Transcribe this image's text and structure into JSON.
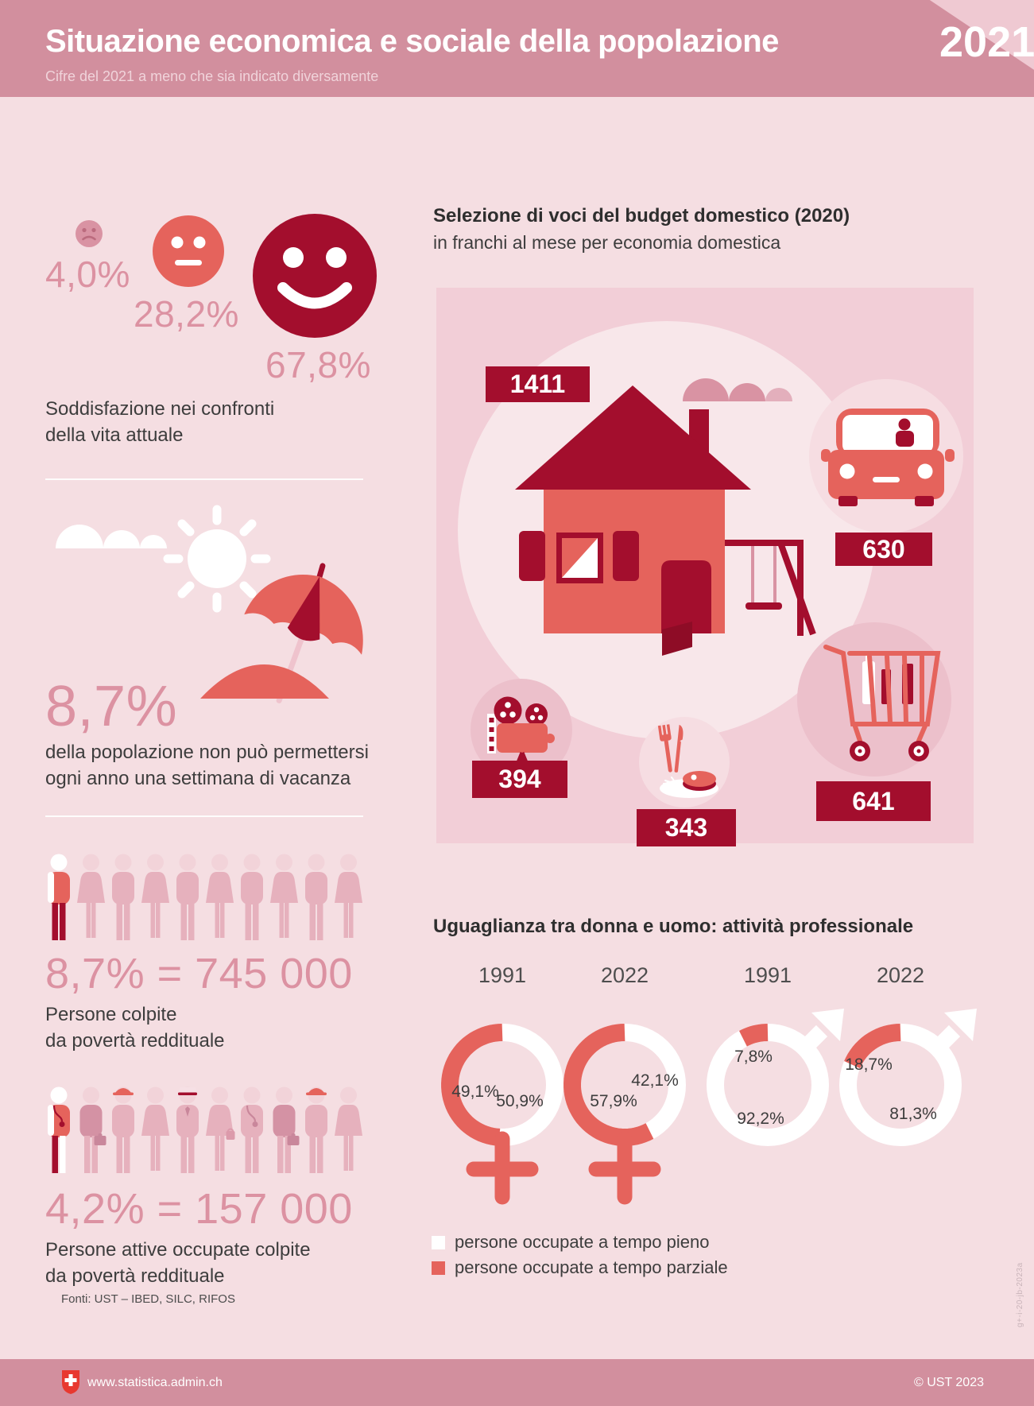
{
  "header": {
    "title": "Situazione economica e sociale della popolazione",
    "subtitle": "Cifre del 2021 a meno che sia indicato diversamente",
    "year": "2021"
  },
  "colors": {
    "dark_red": "#a30e2d",
    "salmon": "#e5635c",
    "band_pink": "#d28f9e",
    "page_pink": "#f5dee2",
    "panel_pink": "#f2ced7",
    "number_pink": "#dc92a2",
    "medium_pink": "#d993a3",
    "swiss_red": "#e8382f",
    "white": "#ffffff"
  },
  "satisfaction": {
    "items": [
      {
        "mood": "sad",
        "value": "4,0%"
      },
      {
        "mood": "neutral",
        "value": "28,2%"
      },
      {
        "mood": "happy",
        "value": "67,8%"
      }
    ],
    "caption_line1": "Soddisfazione nei confronti",
    "caption_line2": "della vita attuale"
  },
  "vacation": {
    "value": "8,7%",
    "caption_line1": "della popolazione non può permettersi",
    "caption_line2": "ogni anno una settimana di vacanza"
  },
  "income_poverty": {
    "value": "8,7% = 745 000",
    "caption_line1": "Persone colpite",
    "caption_line2": "da povertà reddituale"
  },
  "working_poor": {
    "value": "4,2% = 157 000",
    "caption_line1": "Persone attive occupate colpite",
    "caption_line2": "da povertà reddituale"
  },
  "people_rows": [
    {
      "genders": [
        "M",
        "F",
        "M",
        "F",
        "M",
        "F",
        "M",
        "F",
        "M",
        "F"
      ],
      "highlight": 0,
      "accessories": [
        "",
        "",
        "",
        "",
        "",
        "",
        "",
        "",
        "",
        ""
      ]
    },
    {
      "genders": [
        "M",
        "M",
        "M",
        "F",
        "M",
        "F",
        "M",
        "M",
        "M",
        "F"
      ],
      "highlight": 0,
      "accessories": [
        "stethoscope",
        "briefcase",
        "hardhat",
        "",
        "cap",
        "handbag",
        "stethoscope",
        "briefcase",
        "hardhat",
        ""
      ]
    }
  ],
  "budget": {
    "title": "Selezione di voci del budget domestico (2020)",
    "subtitle": "in franchi al mese per economia domestica",
    "items": [
      {
        "icon": "house-icon",
        "value": "1411"
      },
      {
        "icon": "car-icon",
        "value": "630"
      },
      {
        "icon": "cinema-projector-icon",
        "value": "394"
      },
      {
        "icon": "meal-icon",
        "value": "343"
      },
      {
        "icon": "shopping-cart-icon",
        "value": "641"
      }
    ]
  },
  "equality": {
    "title": "Uguaglianza tra donna e uomo: attività professionale",
    "donuts": [
      {
        "year": "1991",
        "gender": "female",
        "part_time_pct": 49.1,
        "full_time_pct": 50.9,
        "part_label": "49,1%",
        "full_label": "50,9%"
      },
      {
        "year": "2022",
        "gender": "female",
        "part_time_pct": 57.9,
        "full_time_pct": 42.1,
        "part_label": "57,9%",
        "full_label": "42,1%"
      },
      {
        "year": "1991",
        "gender": "male",
        "part_time_pct": 7.8,
        "full_time_pct": 92.2,
        "part_label": "7,8%",
        "full_label": "92,2%"
      },
      {
        "year": "2022",
        "gender": "male",
        "part_time_pct": 18.7,
        "full_time_pct": 81.3,
        "part_label": "18,7%",
        "full_label": "81,3%"
      }
    ],
    "legend": [
      {
        "swatch": "white",
        "label": "persone occupate a tempo pieno"
      },
      {
        "swatch": "salmon",
        "label": "persone occupate a tempo parziale"
      }
    ]
  },
  "footer": {
    "sources": "Fonti: UST – IBED, SILC, RIFOS",
    "url": "www.statistica.admin.ch",
    "copyright": "© UST 2023",
    "code": "g+-i-20-jb-2023a"
  },
  "chart_data": [
    {
      "type": "pie",
      "title": "Soddisfazione nei confronti della vita attuale",
      "categories": [
        "insoddisfatti",
        "mediamente soddisfatti",
        "molto soddisfatti"
      ],
      "values": [
        4.0,
        28.2,
        67.8
      ],
      "unit": "%"
    },
    {
      "type": "bar",
      "title": "Selezione di voci del budget domestico (2020)",
      "xlabel": "",
      "ylabel": "franchi al mese per economia domestica",
      "categories": [
        "abitazione (casa)",
        "trasporti (auto)",
        "tempo libero (cinema)",
        "alimentazione (pasto)",
        "spesa (carrello)"
      ],
      "values": [
        1411,
        630,
        394,
        343,
        641
      ],
      "unit": "CHF"
    },
    {
      "type": "pie",
      "title": "Uguaglianza tra donna e uomo: attività professionale",
      "categories": [
        "tempo pieno",
        "tempo parziale"
      ],
      "series": [
        {
          "name": "donne 1991",
          "values": [
            50.9,
            49.1
          ]
        },
        {
          "name": "donne 2022",
          "values": [
            42.1,
            57.9
          ]
        },
        {
          "name": "uomini 1991",
          "values": [
            92.2,
            7.8
          ]
        },
        {
          "name": "uomini 2022",
          "values": [
            81.3,
            18.7
          ]
        }
      ],
      "legend_position": "bottom",
      "unit": "%"
    }
  ]
}
